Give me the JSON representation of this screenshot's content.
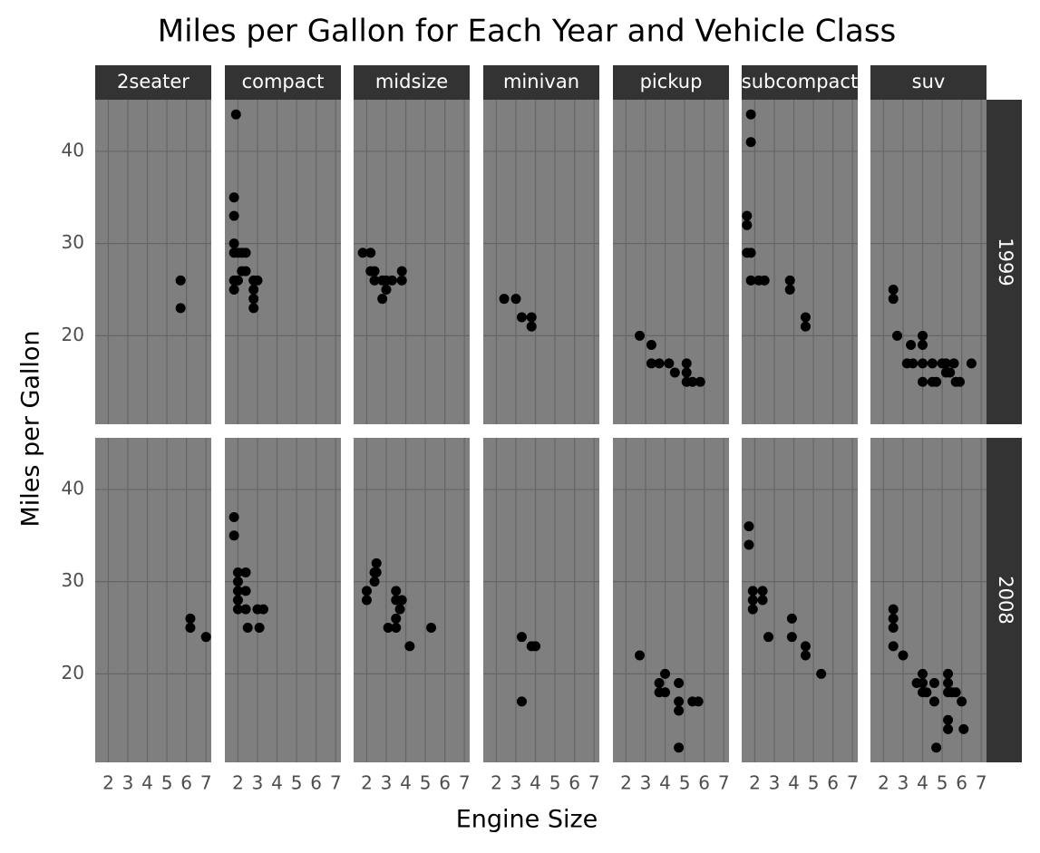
{
  "chart_data": {
    "type": "scatter",
    "title": "Miles per Gallon for Each Year and Vehicle Class",
    "x_label": "Engine Size",
    "y_label": "Miles per Gallon",
    "columns": [
      "2seater",
      "compact",
      "midsize",
      "minivan",
      "pickup",
      "subcompact",
      "suv"
    ],
    "rows": [
      "1999",
      "2008"
    ],
    "xlim": [
      1.33,
      7.27
    ],
    "ylim": [
      10.4,
      45.6
    ],
    "xticks": [
      2,
      3,
      4,
      5,
      6,
      7
    ],
    "yticks": [
      20,
      30,
      40
    ],
    "grid": true,
    "color": "#000000",
    "panels": [
      [
        {
          "x": [
            5.7,
            5.7
          ],
          "y": [
            26,
            23
          ]
        },
        {
          "x": [
            1.8,
            1.8,
            1.8,
            1.8,
            1.8,
            1.8,
            1.9,
            2.0,
            2.0,
            2.2,
            2.2,
            2.4,
            2.4,
            2.8,
            2.8,
            2.8,
            2.8,
            3.0
          ],
          "y": [
            35,
            33,
            30,
            29,
            26,
            25,
            44,
            29,
            26,
            29,
            27,
            29,
            27,
            26,
            25,
            24,
            23,
            26
          ]
        },
        {
          "x": [
            1.8,
            2.2,
            2.2,
            2.4,
            2.4,
            2.8,
            2.8,
            3.0,
            3.0,
            3.3,
            3.8,
            3.8
          ],
          "y": [
            29,
            29,
            27,
            26,
            27,
            26,
            24,
            26,
            25,
            26,
            27,
            26
          ]
        },
        {
          "x": [
            2.4,
            3.0,
            3.3,
            3.8,
            3.8
          ],
          "y": [
            24,
            24,
            22,
            22,
            21
          ]
        },
        {
          "x": [
            2.7,
            3.3,
            3.3,
            3.7,
            4.2,
            4.5,
            5.1,
            5.1,
            5.1,
            5.4,
            5.8
          ],
          "y": [
            20,
            19,
            17,
            17,
            17,
            16,
            17,
            16,
            15,
            15,
            15
          ]
        },
        {
          "x": [
            1.6,
            1.6,
            1.6,
            1.8,
            1.8,
            1.8,
            1.8,
            2.2,
            2.5,
            3.8,
            3.8,
            4.6,
            4.6
          ],
          "y": [
            33,
            32,
            29,
            44,
            41,
            29,
            26,
            26,
            26,
            26,
            25,
            22,
            21
          ]
        },
        {
          "x": [
            2.5,
            2.5,
            2.7,
            3.2,
            3.4,
            3.5,
            4.0,
            4.0,
            4.0,
            4.0,
            4.5,
            4.5,
            4.7,
            5.0,
            5.2,
            5.2,
            5.4,
            5.6,
            5.7,
            5.9,
            6.5
          ],
          "y": [
            25,
            24,
            20,
            17,
            19,
            17,
            20,
            19,
            17,
            15,
            17,
            15,
            15,
            17,
            16,
            17,
            16,
            17,
            15,
            15,
            17
          ]
        }
      ],
      [
        {
          "x": [
            6.2,
            6.2,
            7.0
          ],
          "y": [
            26,
            25,
            24
          ]
        },
        {
          "x": [
            1.8,
            1.8,
            2.0,
            2.0,
            2.0,
            2.0,
            2.0,
            2.4,
            2.4,
            2.4,
            2.5,
            3.0,
            3.1,
            3.3
          ],
          "y": [
            37,
            35,
            31,
            30,
            29,
            28,
            27,
            31,
            29,
            27,
            25,
            27,
            25,
            27
          ]
        },
        {
          "x": [
            2.0,
            2.0,
            2.4,
            2.4,
            2.5,
            2.5,
            3.1,
            3.5,
            3.5,
            3.5,
            3.5,
            3.7,
            3.8,
            4.2,
            5.3
          ],
          "y": [
            29,
            28,
            30,
            31,
            32,
            31,
            25,
            28,
            29,
            26,
            25,
            27,
            28,
            23,
            25
          ]
        },
        {
          "x": [
            3.3,
            3.3,
            3.8,
            4.0
          ],
          "y": [
            24,
            17,
            23,
            23
          ]
        },
        {
          "x": [
            2.7,
            3.7,
            3.7,
            4.0,
            4.0,
            4.7,
            4.7,
            4.7,
            4.7,
            5.4,
            5.7
          ],
          "y": [
            22,
            19,
            18,
            20,
            18,
            19,
            17,
            16,
            12,
            17,
            17
          ]
        },
        {
          "x": [
            1.7,
            1.7,
            1.9,
            1.9,
            1.9,
            2.4,
            2.4,
            2.7,
            3.9,
            3.9,
            4.6,
            4.6,
            5.4
          ],
          "y": [
            36,
            34,
            29,
            28,
            27,
            29,
            28,
            24,
            26,
            24,
            23,
            22,
            20
          ]
        },
        {
          "x": [
            2.5,
            2.5,
            2.5,
            2.5,
            3.0,
            3.7,
            4.0,
            4.0,
            4.0,
            4.2,
            4.6,
            4.6,
            4.7,
            5.3,
            5.3,
            5.3,
            5.3,
            5.3,
            5.5,
            5.7,
            6.0,
            6.1
          ],
          "y": [
            27,
            26,
            25,
            23,
            22,
            19,
            20,
            19,
            18,
            18,
            19,
            17,
            12,
            20,
            19,
            18,
            15,
            14,
            18,
            18,
            17,
            14
          ]
        }
      ]
    ]
  }
}
